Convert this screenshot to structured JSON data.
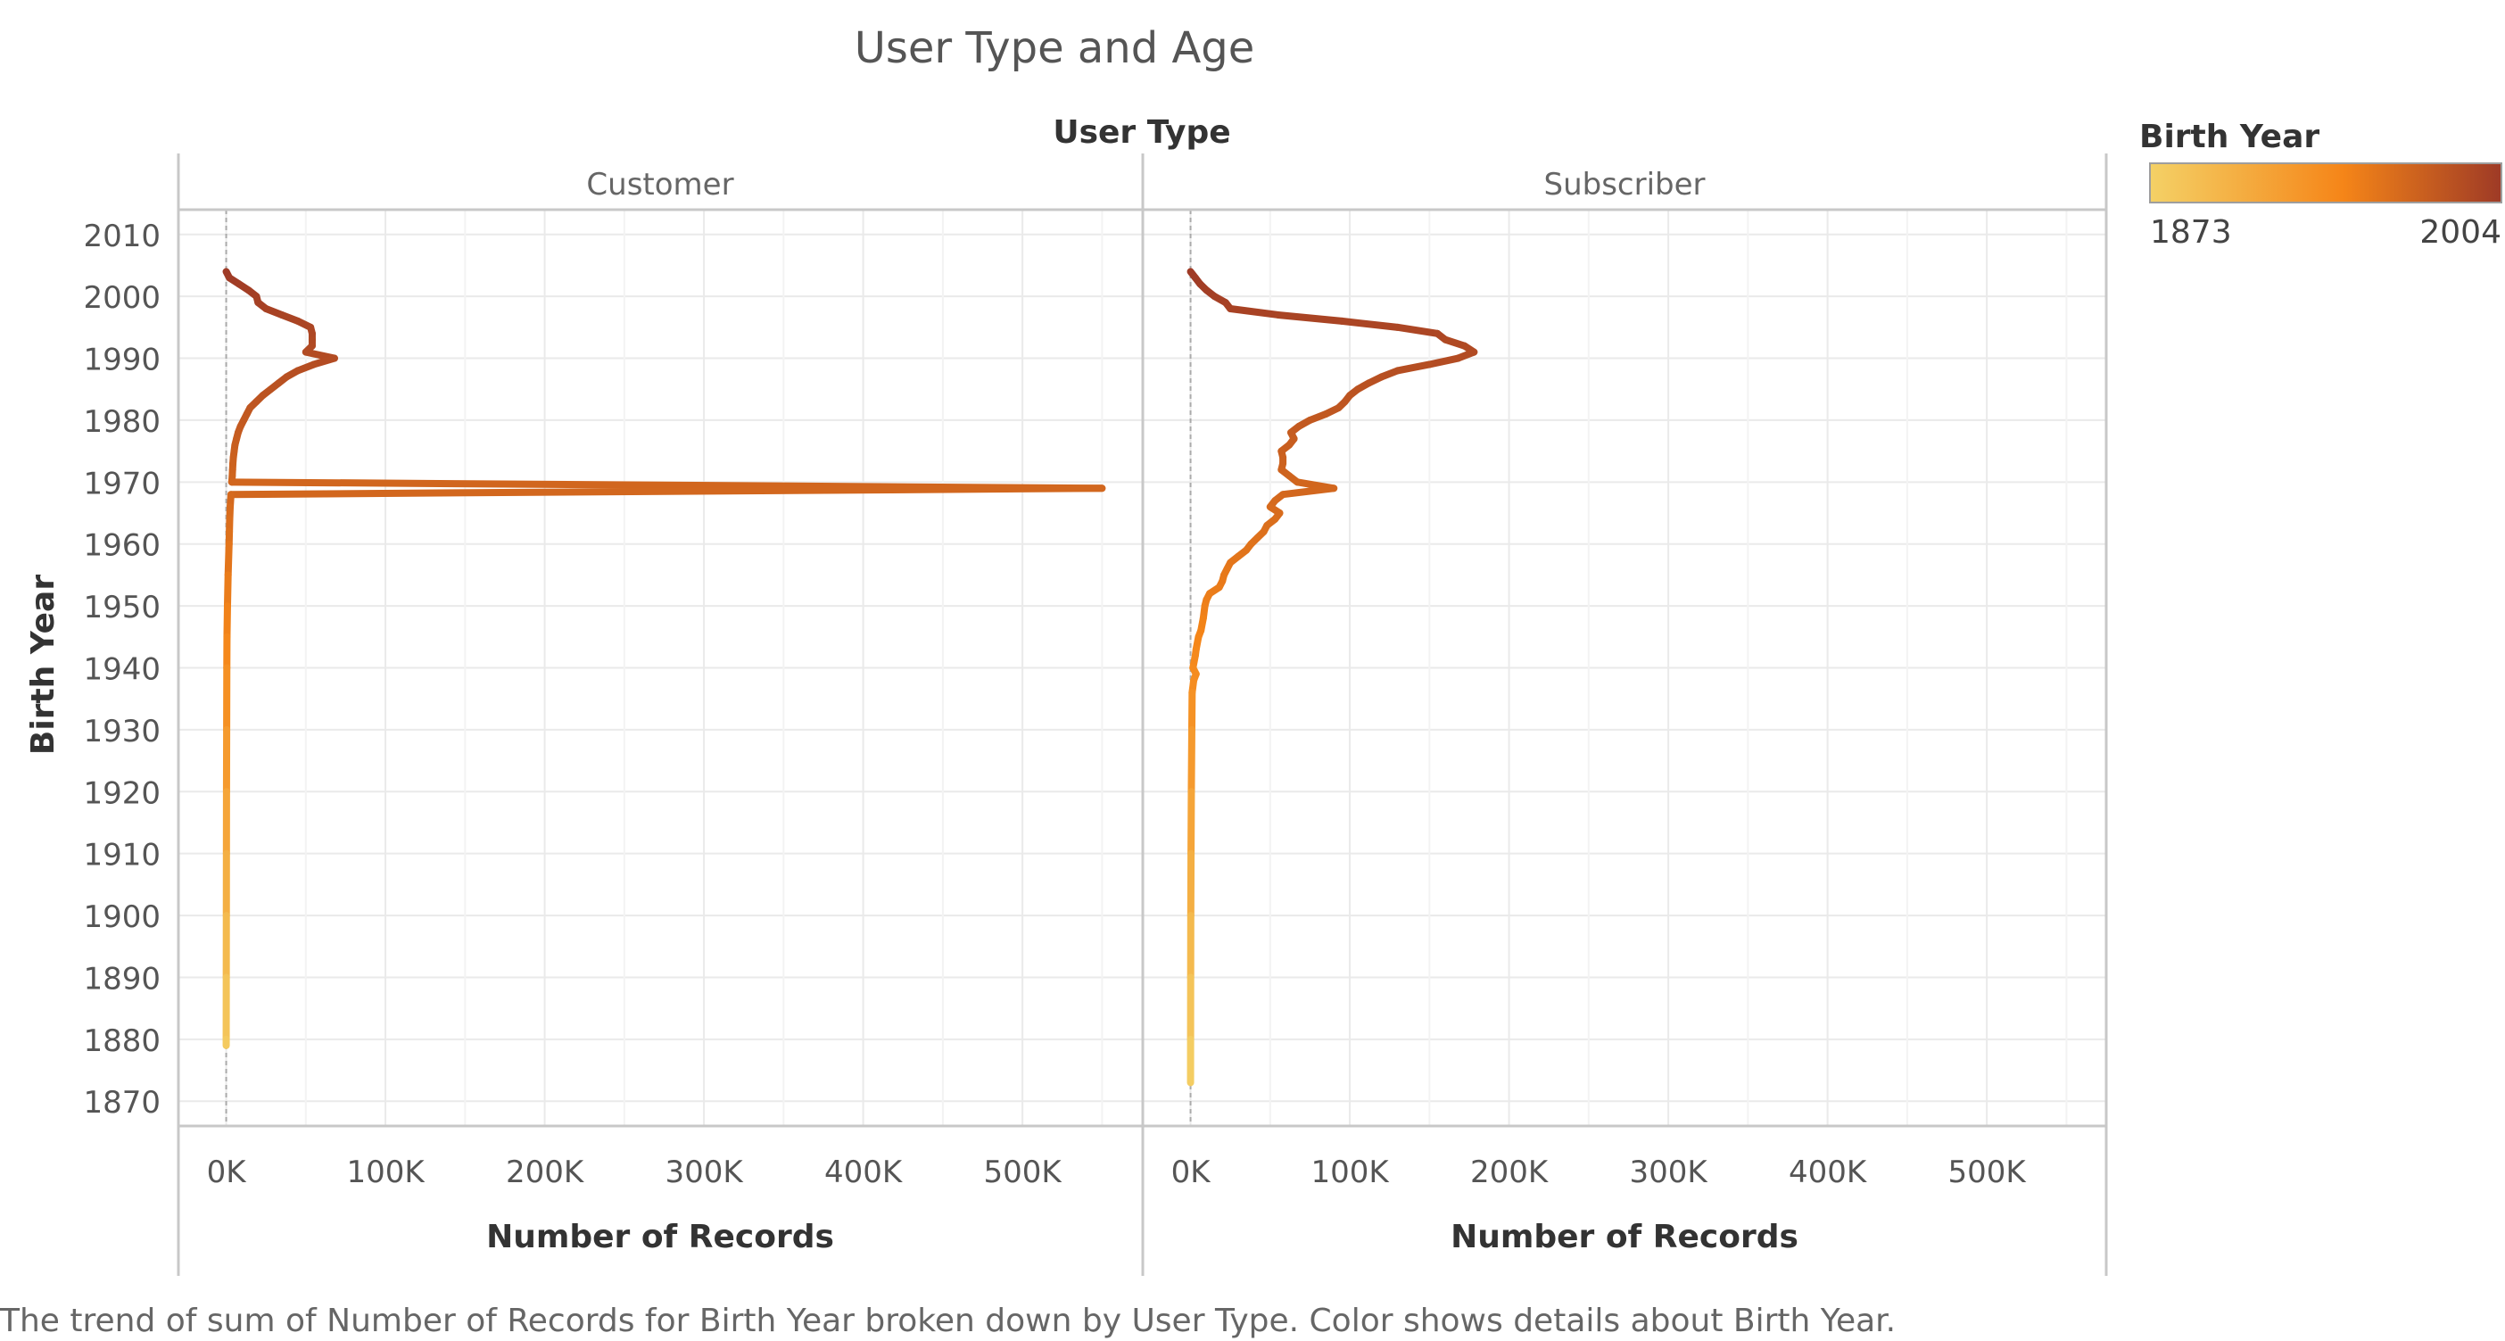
{
  "chart_data": {
    "type": "line",
    "title": "User Type and Age",
    "facet_header": "User Type",
    "panels": [
      "Customer",
      "Subscriber"
    ],
    "xlabel": "Number of Records",
    "ylabel": "Birth Year",
    "x_ticks": [
      "0K",
      "100K",
      "200K",
      "300K",
      "400K",
      "500K"
    ],
    "x_tick_values": [
      0,
      100000,
      200000,
      300000,
      400000,
      500000
    ],
    "xlim": [
      -30000,
      575000
    ],
    "y_ticks": [
      1870,
      1880,
      1890,
      1900,
      1910,
      1920,
      1930,
      1940,
      1950,
      1960,
      1970,
      1980,
      1990,
      2000,
      2010
    ],
    "ylim": [
      1866,
      2014
    ],
    "grid": true,
    "legend": {
      "title": "Birth Year",
      "min_label": "1873",
      "max_label": "2004",
      "colors": [
        "#f4d166",
        "#f58518",
        "#9e3a26"
      ],
      "placement": "top-right"
    },
    "caption": "The trend of sum of Number of Records for Birth Year broken down by User Type.  Color shows details about Birth Year.",
    "series": [
      {
        "name": "Customer",
        "points": [
          [
            2004,
            0
          ],
          [
            2003,
            2000
          ],
          [
            2002,
            8000
          ],
          [
            2001,
            14000
          ],
          [
            2000,
            19000
          ],
          [
            1999,
            20000
          ],
          [
            1998,
            25000
          ],
          [
            1997,
            35000
          ],
          [
            1996,
            45000
          ],
          [
            1995,
            53000
          ],
          [
            1994,
            54000
          ],
          [
            1993,
            54000
          ],
          [
            1992,
            54000
          ],
          [
            1991,
            50000
          ],
          [
            1990,
            68000
          ],
          [
            1989,
            55000
          ],
          [
            1988,
            45000
          ],
          [
            1987,
            38000
          ],
          [
            1986,
            33000
          ],
          [
            1985,
            28000
          ],
          [
            1984,
            23000
          ],
          [
            1983,
            19000
          ],
          [
            1982,
            15000
          ],
          [
            1981,
            13000
          ],
          [
            1980,
            11000
          ],
          [
            1979,
            9000
          ],
          [
            1978,
            7500
          ],
          [
            1977,
            6500
          ],
          [
            1976,
            5500
          ],
          [
            1975,
            5000
          ],
          [
            1974,
            4500
          ],
          [
            1973,
            4200
          ],
          [
            1972,
            4000
          ],
          [
            1971,
            3800
          ],
          [
            1970,
            3500
          ],
          [
            1969,
            550000
          ],
          [
            1968,
            3000
          ],
          [
            1966,
            2500
          ],
          [
            1964,
            2200
          ],
          [
            1962,
            2000
          ],
          [
            1960,
            1800
          ],
          [
            1955,
            1200
          ],
          [
            1950,
            800
          ],
          [
            1945,
            500
          ],
          [
            1940,
            400
          ],
          [
            1930,
            300
          ],
          [
            1920,
            200
          ],
          [
            1910,
            150
          ],
          [
            1900,
            100
          ],
          [
            1890,
            50
          ],
          [
            1880,
            0
          ],
          [
            1879,
            0
          ]
        ]
      },
      {
        "name": "Subscriber",
        "points": [
          [
            2004,
            0
          ],
          [
            2003,
            3000
          ],
          [
            2002,
            6000
          ],
          [
            2001,
            10000
          ],
          [
            2000,
            15000
          ],
          [
            1999,
            22000
          ],
          [
            1998,
            25000
          ],
          [
            1997,
            55000
          ],
          [
            1996,
            95000
          ],
          [
            1995,
            130000
          ],
          [
            1994,
            155000
          ],
          [
            1993,
            160000
          ],
          [
            1992,
            172000
          ],
          [
            1991,
            178000
          ],
          [
            1990,
            168000
          ],
          [
            1989,
            150000
          ],
          [
            1988,
            130000
          ],
          [
            1987,
            120000
          ],
          [
            1986,
            112000
          ],
          [
            1985,
            105000
          ],
          [
            1984,
            100000
          ],
          [
            1983,
            97000
          ],
          [
            1982,
            93000
          ],
          [
            1981,
            85000
          ],
          [
            1980,
            75000
          ],
          [
            1979,
            68000
          ],
          [
            1978,
            63000
          ],
          [
            1977,
            65000
          ],
          [
            1976,
            62000
          ],
          [
            1975,
            57000
          ],
          [
            1974,
            58000
          ],
          [
            1973,
            58000
          ],
          [
            1972,
            57000
          ],
          [
            1971,
            62000
          ],
          [
            1970,
            67000
          ],
          [
            1969,
            90000
          ],
          [
            1968,
            58000
          ],
          [
            1967,
            53000
          ],
          [
            1966,
            50000
          ],
          [
            1965,
            56000
          ],
          [
            1964,
            53000
          ],
          [
            1963,
            48000
          ],
          [
            1962,
            46000
          ],
          [
            1961,
            42000
          ],
          [
            1960,
            38000
          ],
          [
            1959,
            35000
          ],
          [
            1958,
            30000
          ],
          [
            1957,
            25000
          ],
          [
            1956,
            23000
          ],
          [
            1955,
            21000
          ],
          [
            1954,
            20000
          ],
          [
            1953,
            18000
          ],
          [
            1952,
            12000
          ],
          [
            1951,
            10000
          ],
          [
            1950,
            9000
          ],
          [
            1948,
            8000
          ],
          [
            1946,
            6500
          ],
          [
            1945,
            5000
          ],
          [
            1943,
            3500
          ],
          [
            1942,
            3000
          ],
          [
            1940,
            1500
          ],
          [
            1939,
            3500
          ],
          [
            1938,
            2000
          ],
          [
            1936,
            1000
          ],
          [
            1930,
            800
          ],
          [
            1920,
            500
          ],
          [
            1910,
            300
          ],
          [
            1900,
            150
          ],
          [
            1890,
            80
          ],
          [
            1880,
            30
          ],
          [
            1873,
            0
          ]
        ]
      }
    ]
  }
}
